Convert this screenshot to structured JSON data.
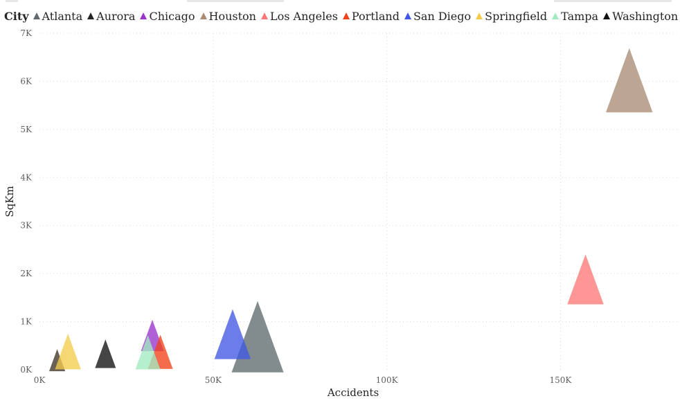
{
  "chart_data": {
    "type": "scatter",
    "marker": "triangle",
    "legend_title": "City",
    "legend_position": "top-left",
    "xlabel": "Accidents",
    "ylabel": "SqKm",
    "xlim": [
      0,
      185000
    ],
    "ylim": [
      0,
      7000
    ],
    "x_ticks": [
      {
        "value": 0,
        "label": "0K"
      },
      {
        "value": 50000,
        "label": "50K"
      },
      {
        "value": 100000,
        "label": "100K"
      },
      {
        "value": 150000,
        "label": "150K"
      }
    ],
    "y_ticks": [
      {
        "value": 0,
        "label": "0K"
      },
      {
        "value": 1000,
        "label": "1K"
      },
      {
        "value": 2000,
        "label": "2K"
      },
      {
        "value": 3000,
        "label": "3K"
      },
      {
        "value": 4000,
        "label": "4K"
      },
      {
        "value": 5000,
        "label": "5K"
      },
      {
        "value": 6000,
        "label": "6K"
      },
      {
        "value": 7000,
        "label": "7K"
      }
    ],
    "grid": true,
    "series": [
      {
        "name": "Atlanta",
        "color": "#5F6B6D",
        "legend_color": "#5F6B6D",
        "x": 62800,
        "y": 1430,
        "size": 5.0
      },
      {
        "name": "Aurora",
        "color": "#3F3525",
        "legend_color": "#252423",
        "x": 5100,
        "y": 430,
        "size": 1.55
      },
      {
        "name": "Chicago",
        "color": "#9933CC",
        "legend_color": "#9933CC",
        "x": 32500,
        "y": 1040,
        "size": 2.2
      },
      {
        "name": "Houston",
        "color": "#A98C73",
        "legend_color": "#A98C73",
        "x": 169800,
        "y": 6690,
        "size": 4.5
      },
      {
        "name": "Los Angeles",
        "color": "#FD7876",
        "legend_color": "#FD7876",
        "x": 157200,
        "y": 2400,
        "size": 3.5
      },
      {
        "name": "Portland",
        "color": "#F2421B",
        "legend_color": "#F2421B",
        "x": 34800,
        "y": 730,
        "size": 2.4
      },
      {
        "name": "San Diego",
        "color": "#4258E4",
        "legend_color": "#4258E4",
        "x": 55600,
        "y": 1260,
        "size": 3.5
      },
      {
        "name": "Springfield",
        "color": "#F2CC4B",
        "legend_color": "#F2CC4B",
        "x": 8200,
        "y": 750,
        "size": 2.5
      },
      {
        "name": "Tampa",
        "color": "#A0EBC0",
        "legend_color": "#A0EBC0",
        "x": 31200,
        "y": 720,
        "size": 2.4
      },
      {
        "name": "Washington DC",
        "color": "#111111",
        "legend_color": "#111111",
        "x": 19000,
        "y": 630,
        "size": 2.0
      }
    ]
  }
}
